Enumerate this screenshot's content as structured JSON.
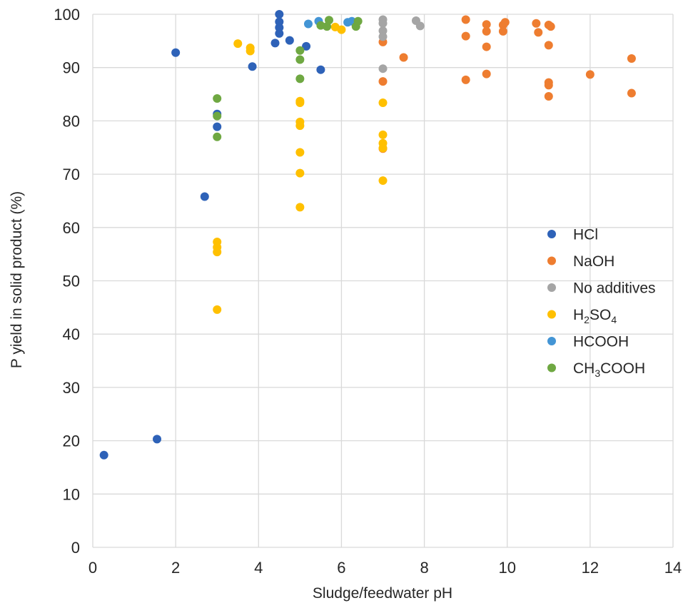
{
  "chart_data": {
    "type": "scatter",
    "title": "",
    "xlabel": "Sludge/feedwater pH",
    "ylabel": "P yield in solid product (%)",
    "xlim": [
      0,
      14
    ],
    "ylim": [
      0,
      100
    ],
    "xticks": [
      0,
      2,
      4,
      6,
      8,
      10,
      12,
      14
    ],
    "yticks": [
      0,
      10,
      20,
      30,
      40,
      50,
      60,
      70,
      80,
      90,
      100
    ],
    "grid": true,
    "legend_position": "right",
    "series": [
      {
        "name": "HCl",
        "label_parts": [
          "HCl"
        ],
        "color": "#2E62B8",
        "points": [
          [
            0.27,
            17.3
          ],
          [
            1.55,
            20.3
          ],
          [
            2.0,
            92.8
          ],
          [
            2.7,
            65.8
          ],
          [
            3.0,
            81.3
          ],
          [
            3.0,
            78.9
          ],
          [
            3.85,
            90.2
          ],
          [
            4.4,
            94.6
          ],
          [
            4.5,
            100.0
          ],
          [
            4.5,
            98.6
          ],
          [
            4.5,
            97.5
          ],
          [
            4.5,
            96.4
          ],
          [
            4.75,
            95.1
          ],
          [
            5.15,
            94.0
          ],
          [
            5.5,
            89.6
          ]
        ]
      },
      {
        "name": "NaOH",
        "label_parts": [
          "NaOH"
        ],
        "color": "#EE7D30",
        "points": [
          [
            7.0,
            94.8
          ],
          [
            7.0,
            87.4
          ],
          [
            7.0,
            74.8
          ],
          [
            7.5,
            91.9
          ],
          [
            9.0,
            99.0
          ],
          [
            9.0,
            95.9
          ],
          [
            9.0,
            87.7
          ],
          [
            9.5,
            98.1
          ],
          [
            9.5,
            96.8
          ],
          [
            9.5,
            93.9
          ],
          [
            9.5,
            88.8
          ],
          [
            9.9,
            98.0
          ],
          [
            9.95,
            98.5
          ],
          [
            9.9,
            96.8
          ],
          [
            10.7,
            98.3
          ],
          [
            10.75,
            96.6
          ],
          [
            11.0,
            98.0
          ],
          [
            11.05,
            97.7
          ],
          [
            11.0,
            94.2
          ],
          [
            11.0,
            87.2
          ],
          [
            11.0,
            86.7
          ],
          [
            11.0,
            84.6
          ],
          [
            12.0,
            88.7
          ],
          [
            13.0,
            91.7
          ],
          [
            13.0,
            85.2
          ]
        ]
      },
      {
        "name": "No additives",
        "label_parts": [
          "No additives"
        ],
        "color": "#A5A5A5",
        "points": [
          [
            7.0,
            99.0
          ],
          [
            7.0,
            98.3
          ],
          [
            7.0,
            96.9
          ],
          [
            7.0,
            95.8
          ],
          [
            7.0,
            89.8
          ],
          [
            7.8,
            98.8
          ],
          [
            7.9,
            97.8
          ]
        ]
      },
      {
        "name": "H2SO4",
        "label_parts": [
          "H",
          "2",
          "SO",
          "4"
        ],
        "color": "#FFC000",
        "points": [
          [
            3.0,
            57.3
          ],
          [
            3.0,
            56.3
          ],
          [
            3.0,
            55.4
          ],
          [
            3.0,
            44.6
          ],
          [
            3.5,
            94.5
          ],
          [
            3.8,
            93.7
          ],
          [
            3.8,
            93.1
          ],
          [
            5.0,
            83.7
          ],
          [
            5.0,
            83.4
          ],
          [
            5.0,
            79.8
          ],
          [
            5.0,
            79.1
          ],
          [
            5.0,
            74.1
          ],
          [
            5.0,
            70.2
          ],
          [
            5.0,
            63.8
          ],
          [
            5.85,
            97.6
          ],
          [
            6.0,
            97.1
          ],
          [
            7.0,
            83.4
          ],
          [
            7.0,
            77.4
          ],
          [
            7.0,
            75.8
          ],
          [
            7.0,
            74.9
          ],
          [
            7.0,
            68.8
          ]
        ]
      },
      {
        "name": "HCOOH",
        "label_parts": [
          "HCOOH"
        ],
        "color": "#4395D5",
        "points": [
          [
            5.2,
            98.2
          ],
          [
            5.45,
            98.7
          ],
          [
            6.15,
            98.5
          ],
          [
            6.25,
            98.7
          ]
        ]
      },
      {
        "name": "CH3COOH",
        "label_parts": [
          "CH",
          "3",
          "COOH"
        ],
        "color": "#6FA842",
        "points": [
          [
            3.0,
            84.2
          ],
          [
            3.0,
            80.9
          ],
          [
            3.0,
            77.0
          ],
          [
            5.0,
            93.2
          ],
          [
            5.0,
            91.5
          ],
          [
            5.0,
            87.9
          ],
          [
            5.5,
            97.9
          ],
          [
            5.65,
            97.7
          ],
          [
            5.7,
            98.9
          ],
          [
            6.35,
            97.7
          ],
          [
            6.4,
            98.7
          ]
        ]
      }
    ]
  }
}
